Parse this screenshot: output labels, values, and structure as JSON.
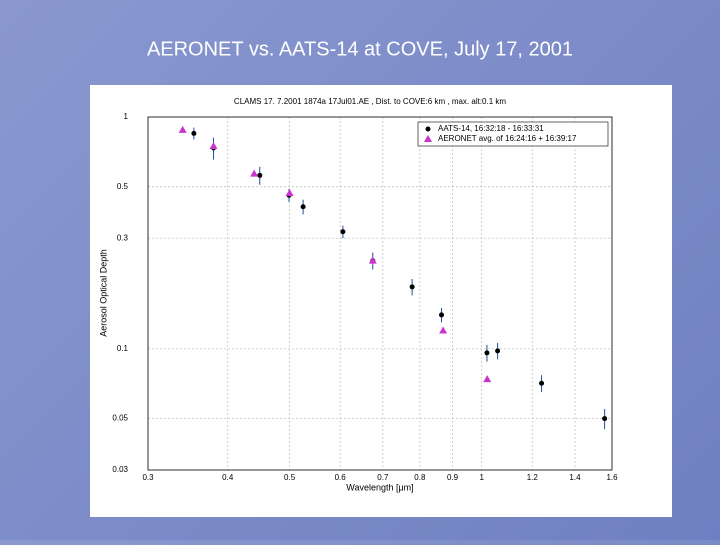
{
  "slide": {
    "title": "AERONET vs. AATS-14 at COVE, July 17, 2001"
  },
  "chart_data": {
    "type": "scatter",
    "title": "CLAMS 17. 7.2001 1874a 17Jul01.AE , Dist. to COVE:6 km , max. alt:0.1 km",
    "x_label": "Wavelength [μm]",
    "y_label": "Aerosol Optical Depth",
    "xlog": true,
    "ylog": true,
    "grid": true,
    "legend": "upper right",
    "xlim": [
      0.3,
      1.6
    ],
    "ylim": [
      0.03,
      1
    ],
    "xticks": [
      0.3,
      0.4,
      0.5,
      0.6,
      0.7,
      0.8,
      0.9,
      1,
      1.2,
      1.4,
      1.6
    ],
    "yticks": [
      0.03,
      0.05,
      0.1,
      0.3,
      0.5,
      1
    ],
    "series": [
      {
        "name": "AATS-14, 16:32:18 - 16:33:31",
        "color": "#000000",
        "marker": "circle",
        "x": [
          0.354,
          0.38,
          0.449,
          0.499,
          0.525,
          0.606,
          0.675,
          0.778,
          0.865,
          1.019,
          1.059,
          1.241,
          1.558
        ],
        "values": [
          0.85,
          0.735,
          0.56,
          0.46,
          0.41,
          0.32,
          0.24,
          0.185,
          0.14,
          0.096,
          0.098,
          0.071,
          0.05
        ],
        "errors": [
          0.05,
          0.08,
          0.05,
          0.03,
          0.03,
          0.02,
          0.02,
          0.015,
          0.01,
          0.008,
          0.008,
          0.006,
          0.005
        ]
      },
      {
        "name": "AERONET avg. of 16:24:16 + 16:39:17",
        "color": "#cc33cc",
        "marker": "triangle",
        "x": [
          0.34,
          0.38,
          0.44,
          0.5,
          0.675,
          0.87,
          1.02
        ],
        "values": [
          0.88,
          0.75,
          0.57,
          0.47,
          0.24,
          0.12,
          0.074
        ]
      }
    ]
  }
}
